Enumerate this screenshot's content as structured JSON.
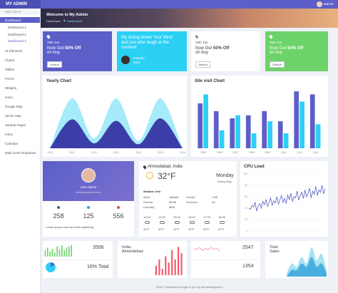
{
  "header": {
    "logo": "MY ADMIN",
    "user": "Marcel"
  },
  "sidebar": {
    "heading": "Main Menu",
    "items": [
      "Dashboard",
      "UI Elements",
      "Charts",
      "Tables",
      "Forms",
      "Widgets",
      "Icons",
      "Google Map",
      "Vector Map",
      "Sample Pages",
      "Inbox",
      "Calendar",
      "Multi Level Dropdown"
    ],
    "submenu": [
      "Dashboard 1",
      "Dashboard 2",
      "Dashboard 3"
    ]
  },
  "banner": {
    "title": "Welcome to My Admin",
    "breadcrumb": [
      "Dashboard",
      "Dashboard1"
    ]
  },
  "promos": [
    {
      "date": "25th Jan",
      "text": "Now Get",
      "highlight": "50% Off",
      "tail": "on buy",
      "button": "Default"
    },
    {
      "date": "25th Jan",
      "text": "Now Get",
      "highlight": "50% Off",
      "tail": "on buy",
      "button": "Default"
    },
    {
      "date": "25th Jan",
      "text": "Now Get",
      "highlight": "50% Off",
      "tail": "on buy",
      "button": "Default"
    }
  ],
  "quote": {
    "text": "My Acting blown Your Mind and you also laugh at the moment",
    "name": "Govinda",
    "role": "Actor"
  },
  "profile": {
    "name": "User Name",
    "email": "info@myadmin.com",
    "stats": [
      "258",
      "125",
      "556"
    ],
    "footer": "Lorem ipsum dolor sit amet adipiscing"
  },
  "weather": {
    "location": "Ahmedabad, India",
    "temp": "32°F",
    "day": "Monday",
    "condition": "Sunny Day",
    "info_title": "Weather Info",
    "details": [
      [
        "Wind",
        "10km/h"
      ],
      [
        "Sunset",
        "7:05"
      ],
      [
        "Sunrise",
        "06:30"
      ],
      [
        "Pressure",
        "23"
      ],
      [
        "Humidity",
        "96%"
      ]
    ],
    "hourly": [
      {
        "time": "13:00",
        "temp": "32°F"
      },
      {
        "time": "14:00",
        "temp": "32°F"
      },
      {
        "time": "15:00",
        "temp": "32°F"
      },
      {
        "time": "16:00",
        "temp": "32°F"
      },
      {
        "time": "17:00",
        "temp": "32°F"
      },
      {
        "time": "18:00",
        "temp": "32°F"
      }
    ]
  },
  "stat_cards": {
    "sales": "3506",
    "pie_label": "16% Total",
    "location": "India, Ahmedabad",
    "visits": "2547",
    "views": "1354",
    "total": "Total Sales"
  },
  "footer": "2016 © Myadmin brought to you by themedesigner.in",
  "chart_data": [
    {
      "type": "area",
      "title": "Yearly Chart",
      "categories": [
        "2010",
        "2011",
        "2012",
        "2013",
        "2014",
        "2015",
        "2016"
      ],
      "ylim": [
        0,
        120
      ],
      "series": [
        {
          "color": "#a6ebf9",
          "values": [
            0,
            100,
            20,
            100,
            15,
            100,
            0
          ]
        },
        {
          "color": "#3b3ea8",
          "values": [
            0,
            58,
            10,
            55,
            8,
            60,
            0
          ]
        }
      ]
    },
    {
      "type": "bar",
      "title": "Site visit Chart",
      "categories": [
        "2005",
        "2006",
        "2007",
        "2008",
        "2009",
        "2010",
        "2011",
        "2012"
      ],
      "ylim": [
        0,
        100
      ],
      "series": [
        {
          "color": "#5b5fc7",
          "values": [
            75,
            62,
            50,
            55,
            62,
            45,
            95,
            90
          ]
        },
        {
          "color": "#2cd0f5",
          "values": [
            90,
            30,
            55,
            25,
            45,
            25,
            78,
            40
          ]
        }
      ]
    },
    {
      "type": "line",
      "title": "CPU Load",
      "color": "#5b5fc7",
      "ylim": [
        0,
        100
      ],
      "yticks": [
        0,
        20,
        40,
        60,
        80,
        100
      ],
      "values": [
        40,
        38,
        45,
        42,
        50,
        35,
        44,
        48,
        40,
        52,
        46,
        55,
        43,
        50,
        58,
        45,
        53,
        49,
        60,
        47,
        55,
        62,
        50,
        57,
        48,
        63,
        55,
        66,
        52,
        60,
        58,
        70,
        54,
        62,
        68,
        57,
        72,
        60,
        66,
        75,
        58,
        70,
        64,
        78,
        62,
        72,
        68,
        80,
        65,
        74
      ]
    },
    {
      "type": "bar",
      "color": "#6ed26a",
      "ylim": [
        0,
        10
      ],
      "values": [
        5,
        7,
        4,
        6,
        3,
        8,
        6,
        9,
        5,
        7,
        8,
        9
      ]
    },
    {
      "type": "pie",
      "colors": [
        "#5b5fc7",
        "#2cd0f5"
      ],
      "values": [
        16,
        84
      ]
    },
    {
      "type": "bar",
      "color": "#f25767",
      "ylim": [
        0,
        10
      ],
      "values": [
        3,
        5,
        2,
        6,
        4,
        8,
        5,
        9,
        7
      ]
    },
    {
      "type": "line",
      "color": "#f58b9a",
      "ylim": [
        0,
        10
      ],
      "values": [
        6,
        5,
        7,
        4,
        6,
        5,
        7,
        5,
        6,
        4
      ]
    },
    {
      "type": "area",
      "ylim": [
        0,
        10
      ],
      "series": [
        {
          "color": "#a6e3f5",
          "values": [
            1,
            4,
            3,
            6,
            4,
            9,
            5,
            7,
            2
          ]
        },
        {
          "color": "#4aaee0",
          "values": [
            0,
            2,
            2,
            4,
            3,
            6,
            3,
            4,
            1
          ]
        }
      ]
    }
  ]
}
